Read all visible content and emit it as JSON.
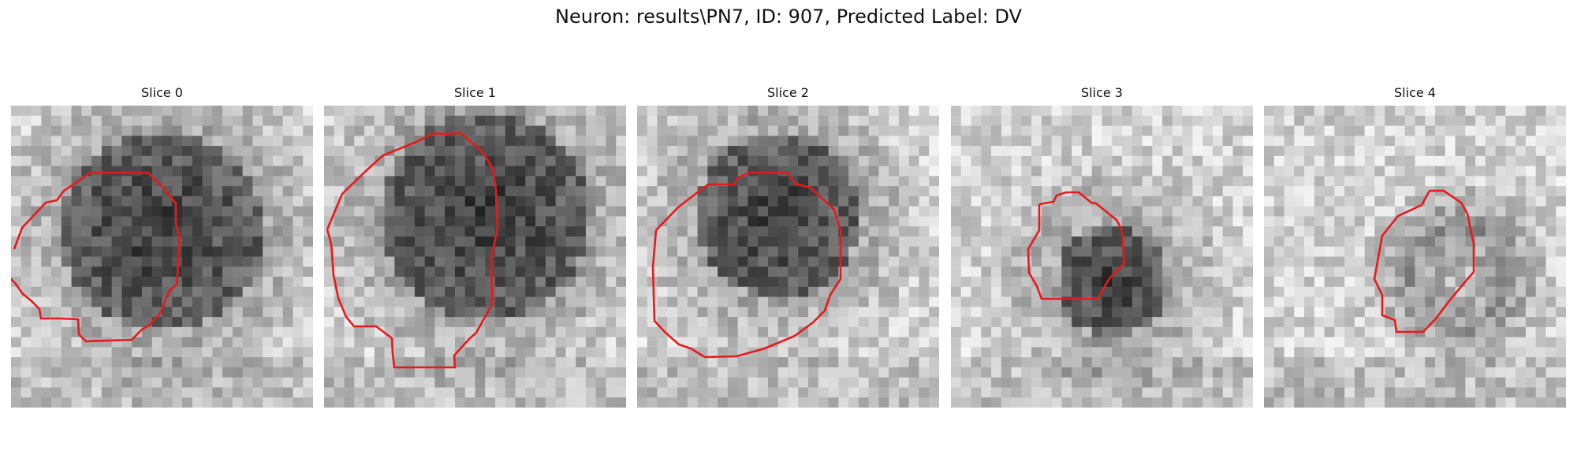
{
  "figure": {
    "title": "Neuron: results\\PN7, ID: 907, Predicted Label: DV"
  },
  "panels": [
    {
      "title": "Slice 0",
      "dark_region": "large dark blob, upper centre",
      "outline_color": "#e8191c"
    },
    {
      "title": "Slice 1",
      "dark_region": "large dark blob, upper centre",
      "outline_color": "#e8191c"
    },
    {
      "title": "Slice 2",
      "dark_region": "dark blob, upper centre",
      "outline_color": "#e8191c"
    },
    {
      "title": "Slice 3",
      "dark_region": "small dark blob, centre",
      "outline_color": "#e8191c"
    },
    {
      "title": "Slice 4",
      "dark_region": "faint ring, right of centre",
      "outline_color": "#e8191c"
    }
  ],
  "colors": {
    "outline": "#e8191c",
    "background": "#ffffff",
    "colormap": "grayscale"
  }
}
